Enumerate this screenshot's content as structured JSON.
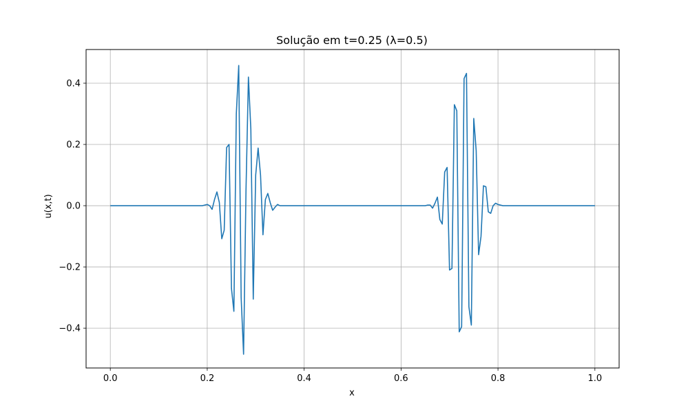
{
  "chart_data": {
    "type": "line",
    "title": "Solução em t=0.25 (λ=0.5)",
    "xlabel": "x",
    "ylabel": "u(x,t)",
    "xlim": [
      -0.05,
      1.05
    ],
    "ylim": [
      -0.53,
      0.51
    ],
    "grid": true,
    "x_ticks": [
      0.0,
      0.2,
      0.4,
      0.6,
      0.8,
      1.0
    ],
    "x_tick_labels": [
      "0.0",
      "0.2",
      "0.4",
      "0.6",
      "0.8",
      "1.0"
    ],
    "y_ticks": [
      -0.4,
      -0.2,
      0.0,
      0.2,
      0.4
    ],
    "y_tick_labels": [
      "−0.4",
      "−0.2",
      "0.0",
      "0.2",
      "0.4"
    ],
    "series": [
      {
        "color": "#1f77b4",
        "x": [
          0.0,
          0.185,
          0.19,
          0.195,
          0.2,
          0.205,
          0.21,
          0.215,
          0.22,
          0.225,
          0.23,
          0.235,
          0.24,
          0.245,
          0.25,
          0.255,
          0.26,
          0.265,
          0.27,
          0.275,
          0.28,
          0.285,
          0.29,
          0.295,
          0.3,
          0.305,
          0.31,
          0.315,
          0.32,
          0.325,
          0.33,
          0.335,
          0.34,
          0.345,
          0.35,
          0.36,
          0.64,
          0.645,
          0.65,
          0.655,
          0.66,
          0.665,
          0.67,
          0.675,
          0.68,
          0.685,
          0.69,
          0.695,
          0.7,
          0.705,
          0.71,
          0.715,
          0.72,
          0.725,
          0.73,
          0.735,
          0.74,
          0.745,
          0.75,
          0.755,
          0.76,
          0.765,
          0.77,
          0.775,
          0.78,
          0.785,
          0.79,
          0.795,
          0.8,
          0.81,
          1.0
        ],
        "y": [
          0.0,
          0.0,
          0.0,
          0.002,
          0.004,
          0.0,
          -0.012,
          0.02,
          0.045,
          0.01,
          -0.108,
          -0.08,
          0.19,
          0.2,
          -0.27,
          -0.345,
          0.3,
          0.458,
          -0.3,
          -0.485,
          0.05,
          0.42,
          0.25,
          -0.305,
          0.1,
          0.188,
          0.1,
          -0.095,
          0.02,
          0.04,
          0.01,
          -0.015,
          -0.005,
          0.004,
          0.0,
          0.0,
          0.0,
          0.0,
          0.0,
          0.002,
          0.002,
          -0.008,
          0.008,
          0.028,
          -0.045,
          -0.06,
          0.11,
          0.125,
          -0.21,
          -0.205,
          0.33,
          0.31,
          -0.412,
          -0.395,
          0.415,
          0.432,
          -0.33,
          -0.39,
          0.285,
          0.18,
          -0.16,
          -0.1,
          0.065,
          0.062,
          -0.02,
          -0.025,
          0.0,
          0.008,
          0.004,
          0.0,
          0.0
        ]
      }
    ]
  }
}
